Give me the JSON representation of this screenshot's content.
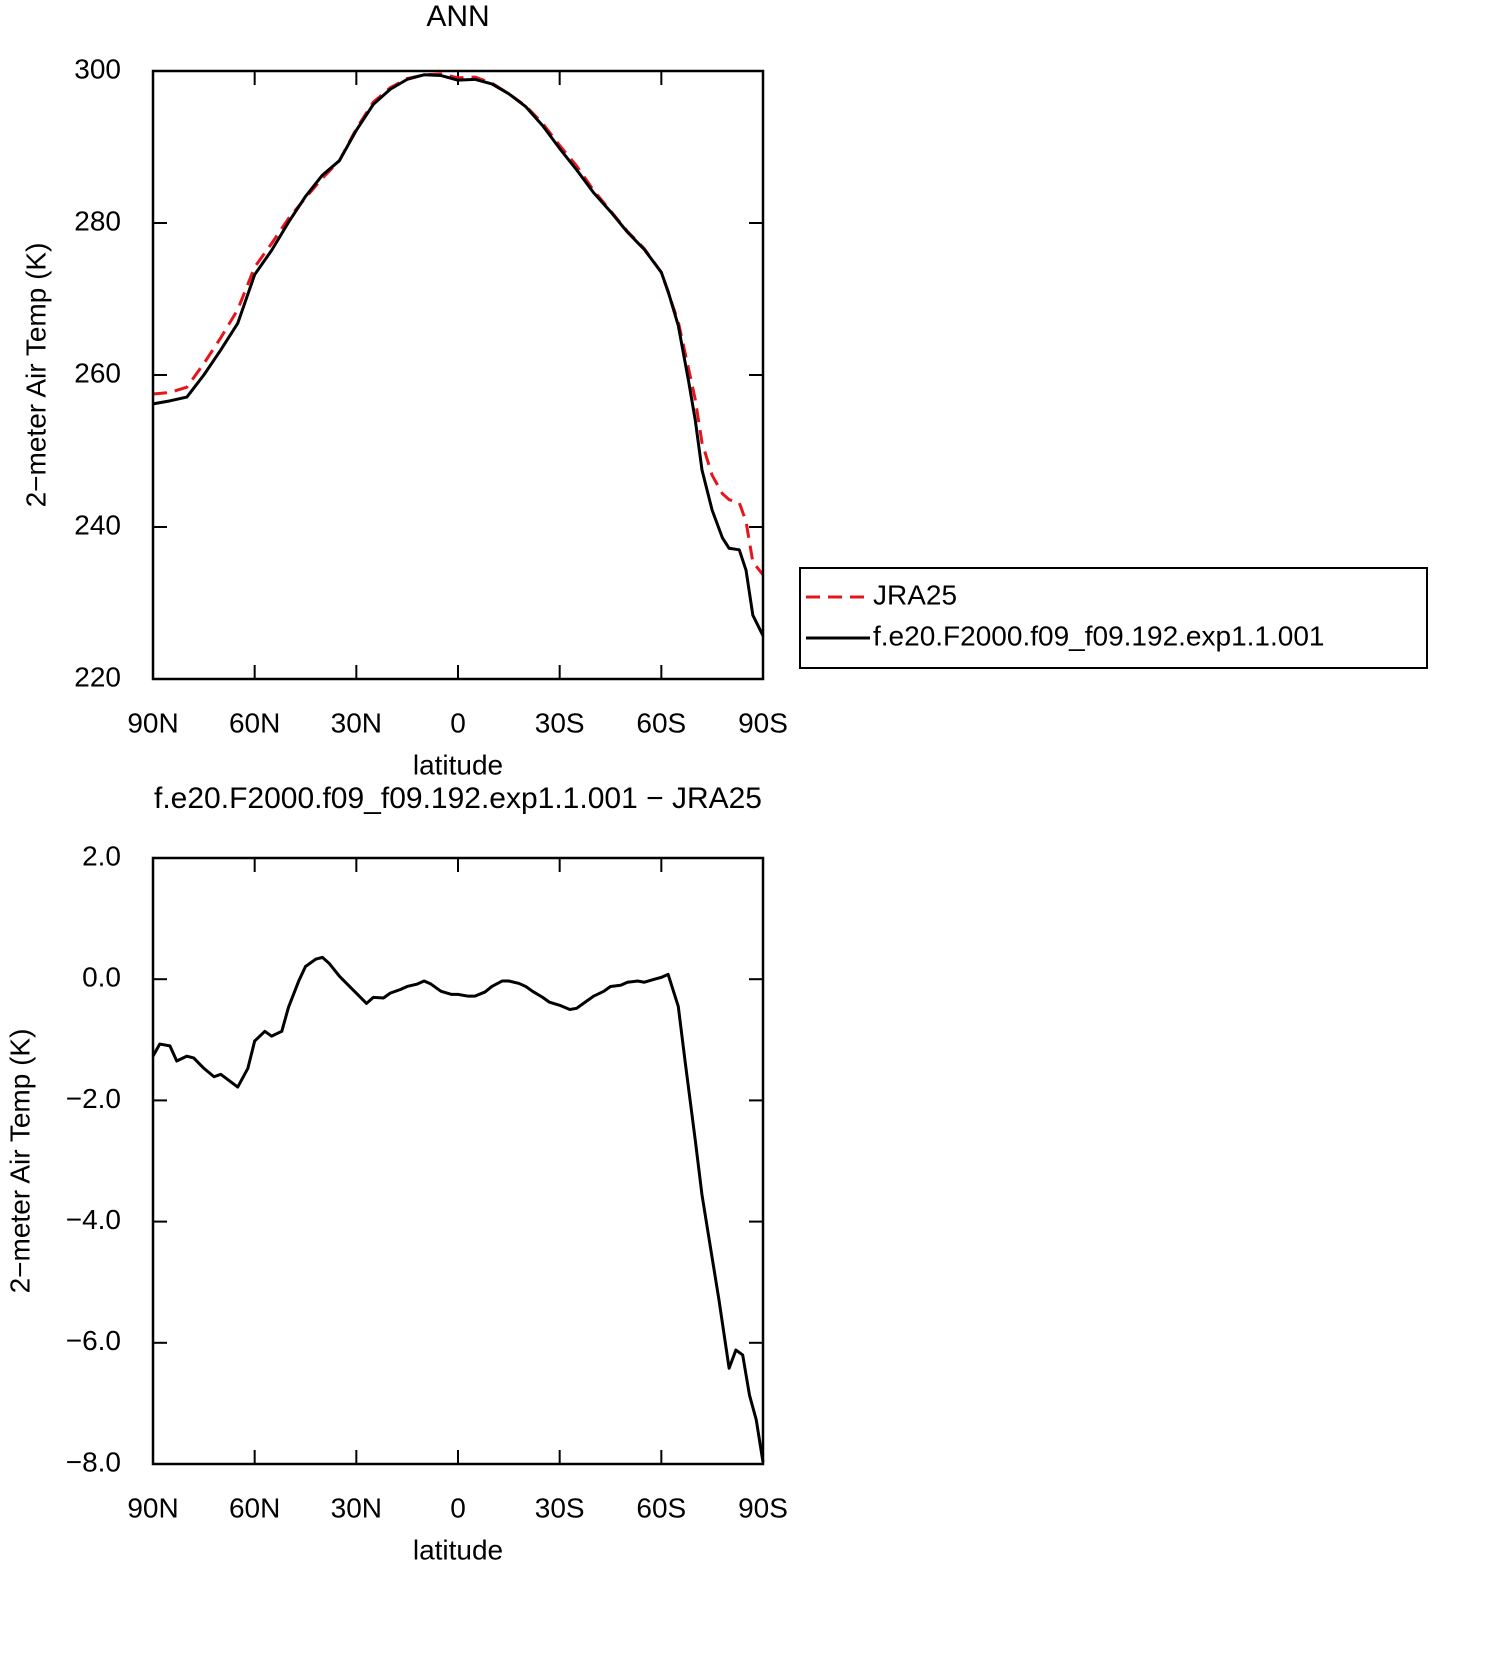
{
  "chart_data": [
    {
      "type": "line",
      "title": "ANN",
      "xlabel": "latitude",
      "ylabel": "2−meter Air Temp (K)",
      "x": [
        90,
        85,
        80,
        75,
        70,
        65,
        60,
        55,
        50,
        45,
        40,
        35,
        30,
        25,
        20,
        15,
        10,
        5,
        0,
        -5,
        -10,
        -15,
        -20,
        -25,
        -30,
        -35,
        -40,
        -45,
        -50,
        -55,
        -60,
        -62,
        -65,
        -68,
        -70,
        -72,
        -75,
        -78,
        -80,
        -83,
        -85,
        -87,
        -90
      ],
      "series": [
        {
          "name": "JRA25",
          "color": "#e8141c",
          "dashed": true,
          "values": [
            257.5,
            257.7,
            258.4,
            261.5,
            264.9,
            268.6,
            274.2,
            277.3,
            280.6,
            283.3,
            285.9,
            288.2,
            292.4,
            295.9,
            297.8,
            299.0,
            299.5,
            299.6,
            299.1,
            299.2,
            298.4,
            297.0,
            295.4,
            293.1,
            290.2,
            287.5,
            284.3,
            281.6,
            278.9,
            276.6,
            273.5,
            270.9,
            267.0,
            260.9,
            256.8,
            251.1,
            246.8,
            244.4,
            243.6,
            243.2,
            240.7,
            235.4,
            233.7
          ]
        },
        {
          "name": "f.e20.F2000.f09_f09.192.exp1.1.001",
          "color": "#000000",
          "dashed": false,
          "values": [
            256.2,
            256.6,
            257.1,
            260.0,
            263.3,
            266.8,
            273.2,
            276.4,
            280.1,
            283.5,
            286.3,
            288.2,
            292.2,
            295.6,
            297.6,
            298.9,
            299.5,
            299.4,
            298.8,
            298.9,
            298.3,
            297.0,
            295.3,
            292.8,
            289.8,
            287.0,
            284.0,
            281.5,
            278.8,
            276.5,
            273.5,
            271.0,
            266.5,
            259.3,
            254.1,
            247.5,
            242.2,
            238.6,
            237.2,
            237.0,
            234.3,
            228.4,
            225.7
          ]
        }
      ],
      "xlim": [
        90,
        -90
      ],
      "xticks": [
        {
          "value": 90,
          "label": "90N"
        },
        {
          "value": 60,
          "label": "60N"
        },
        {
          "value": 30,
          "label": "30N"
        },
        0,
        {
          "value": -30,
          "label": "30S"
        },
        {
          "value": -60,
          "label": "60S"
        },
        {
          "value": -90,
          "label": "90S"
        }
      ],
      "ylim": [
        220,
        300
      ],
      "yticks": [
        220,
        240,
        260,
        280,
        300
      ],
      "grid": false
    },
    {
      "type": "line",
      "title": "f.e20.F2000.f09_f09.192.exp1.1.001 − JRA25",
      "xlabel": "latitude",
      "ylabel": "2−meter Air Temp (K)",
      "x": [
        90,
        88,
        85,
        83,
        80,
        78,
        75,
        72,
        70,
        65,
        62,
        60,
        57,
        55,
        52,
        50,
        47,
        45,
        42,
        40,
        38,
        35,
        32,
        30,
        27,
        25,
        22,
        20,
        17,
        15,
        12,
        10,
        8,
        5,
        2,
        0,
        -3,
        -5,
        -8,
        -10,
        -13,
        -15,
        -18,
        -20,
        -22,
        -25,
        -27,
        -30,
        -33,
        -35,
        -38,
        -40,
        -43,
        -45,
        -48,
        -50,
        -53,
        -55,
        -58,
        -60,
        -62,
        -65,
        -67,
        -70,
        -72,
        -75,
        -77,
        -80,
        -82,
        -84,
        -86,
        -88,
        -90
      ],
      "color": "#000000",
      "values": [
        -1.27,
        -1.07,
        -1.1,
        -1.35,
        -1.27,
        -1.3,
        -1.47,
        -1.61,
        -1.57,
        -1.78,
        -1.47,
        -1.02,
        -0.86,
        -0.94,
        -0.86,
        -0.46,
        -0.03,
        0.21,
        0.33,
        0.36,
        0.26,
        0.05,
        -0.12,
        -0.23,
        -0.4,
        -0.3,
        -0.31,
        -0.23,
        -0.17,
        -0.12,
        -0.08,
        -0.03,
        -0.08,
        -0.2,
        -0.25,
        -0.25,
        -0.28,
        -0.28,
        -0.21,
        -0.12,
        -0.03,
        -0.03,
        -0.07,
        -0.12,
        -0.2,
        -0.3,
        -0.38,
        -0.43,
        -0.5,
        -0.48,
        -0.36,
        -0.28,
        -0.2,
        -0.12,
        -0.1,
        -0.05,
        -0.03,
        -0.05,
        0,
        0.03,
        0.08,
        -0.45,
        -1.35,
        -2.65,
        -3.56,
        -4.6,
        -5.29,
        -6.42,
        -6.12,
        -6.2,
        -6.86,
        -7.27,
        -7.97
      ],
      "xlim": [
        90,
        -90
      ],
      "xticks": [
        {
          "value": 90,
          "label": "90N"
        },
        {
          "value": 60,
          "label": "60N"
        },
        {
          "value": 30,
          "label": "30N"
        },
        0,
        {
          "value": -30,
          "label": "30S"
        },
        {
          "value": -60,
          "label": "60S"
        },
        {
          "value": -90,
          "label": "90S"
        }
      ],
      "ylim": [
        -8,
        2
      ],
      "yticks": [
        {
          "value": -8,
          "label": "−8.0"
        },
        {
          "value": -6,
          "label": "−6.0"
        },
        {
          "value": -4,
          "label": "−4.0"
        },
        {
          "value": -2,
          "label": "−2.0"
        },
        {
          "value": 0,
          "label": "0.0"
        },
        {
          "value": 2,
          "label": "2.0"
        }
      ],
      "grid": false
    }
  ]
}
